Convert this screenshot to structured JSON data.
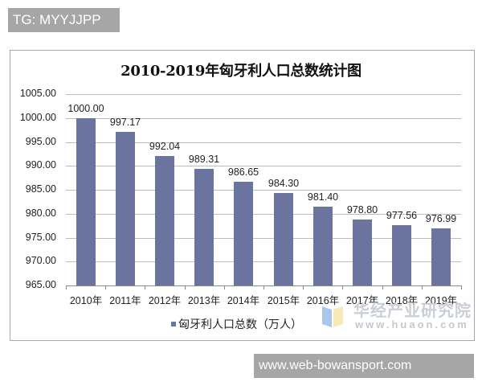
{
  "overlay": {
    "top_tag": "TG: MYYJJPP",
    "bottom_tag": "www.web-bowansport.com"
  },
  "watermark": {
    "cn": "华经产业研究院",
    "en": "www.huaon.com"
  },
  "chart_data": {
    "type": "bar",
    "title": "2010-2019年匈牙利人口总数统计图",
    "xlabel": "",
    "ylabel": "",
    "categories": [
      "2010年",
      "2011年",
      "2012年",
      "2013年",
      "2014年",
      "2015年",
      "2016年",
      "2017年",
      "2018年",
      "2019年"
    ],
    "series": [
      {
        "name": "匈牙利人口总数（万人）",
        "color": "#6b739f",
        "values": [
          1000.0,
          997.17,
          992.04,
          989.31,
          986.65,
          984.3,
          981.4,
          978.8,
          977.56,
          976.99
        ],
        "labels": [
          "1000.00",
          "997.17",
          "992.04",
          "989.31",
          "986.65",
          "984.30",
          "981.40",
          "978.80",
          "977.56",
          "976.99"
        ]
      }
    ],
    "yticks": [
      "1005.00",
      "1000.00",
      "995.00",
      "990.00",
      "985.00",
      "980.00",
      "975.00",
      "970.00",
      "965.00"
    ],
    "ylim": [
      965,
      1005
    ],
    "grid": true,
    "legend_position": "bottom"
  }
}
